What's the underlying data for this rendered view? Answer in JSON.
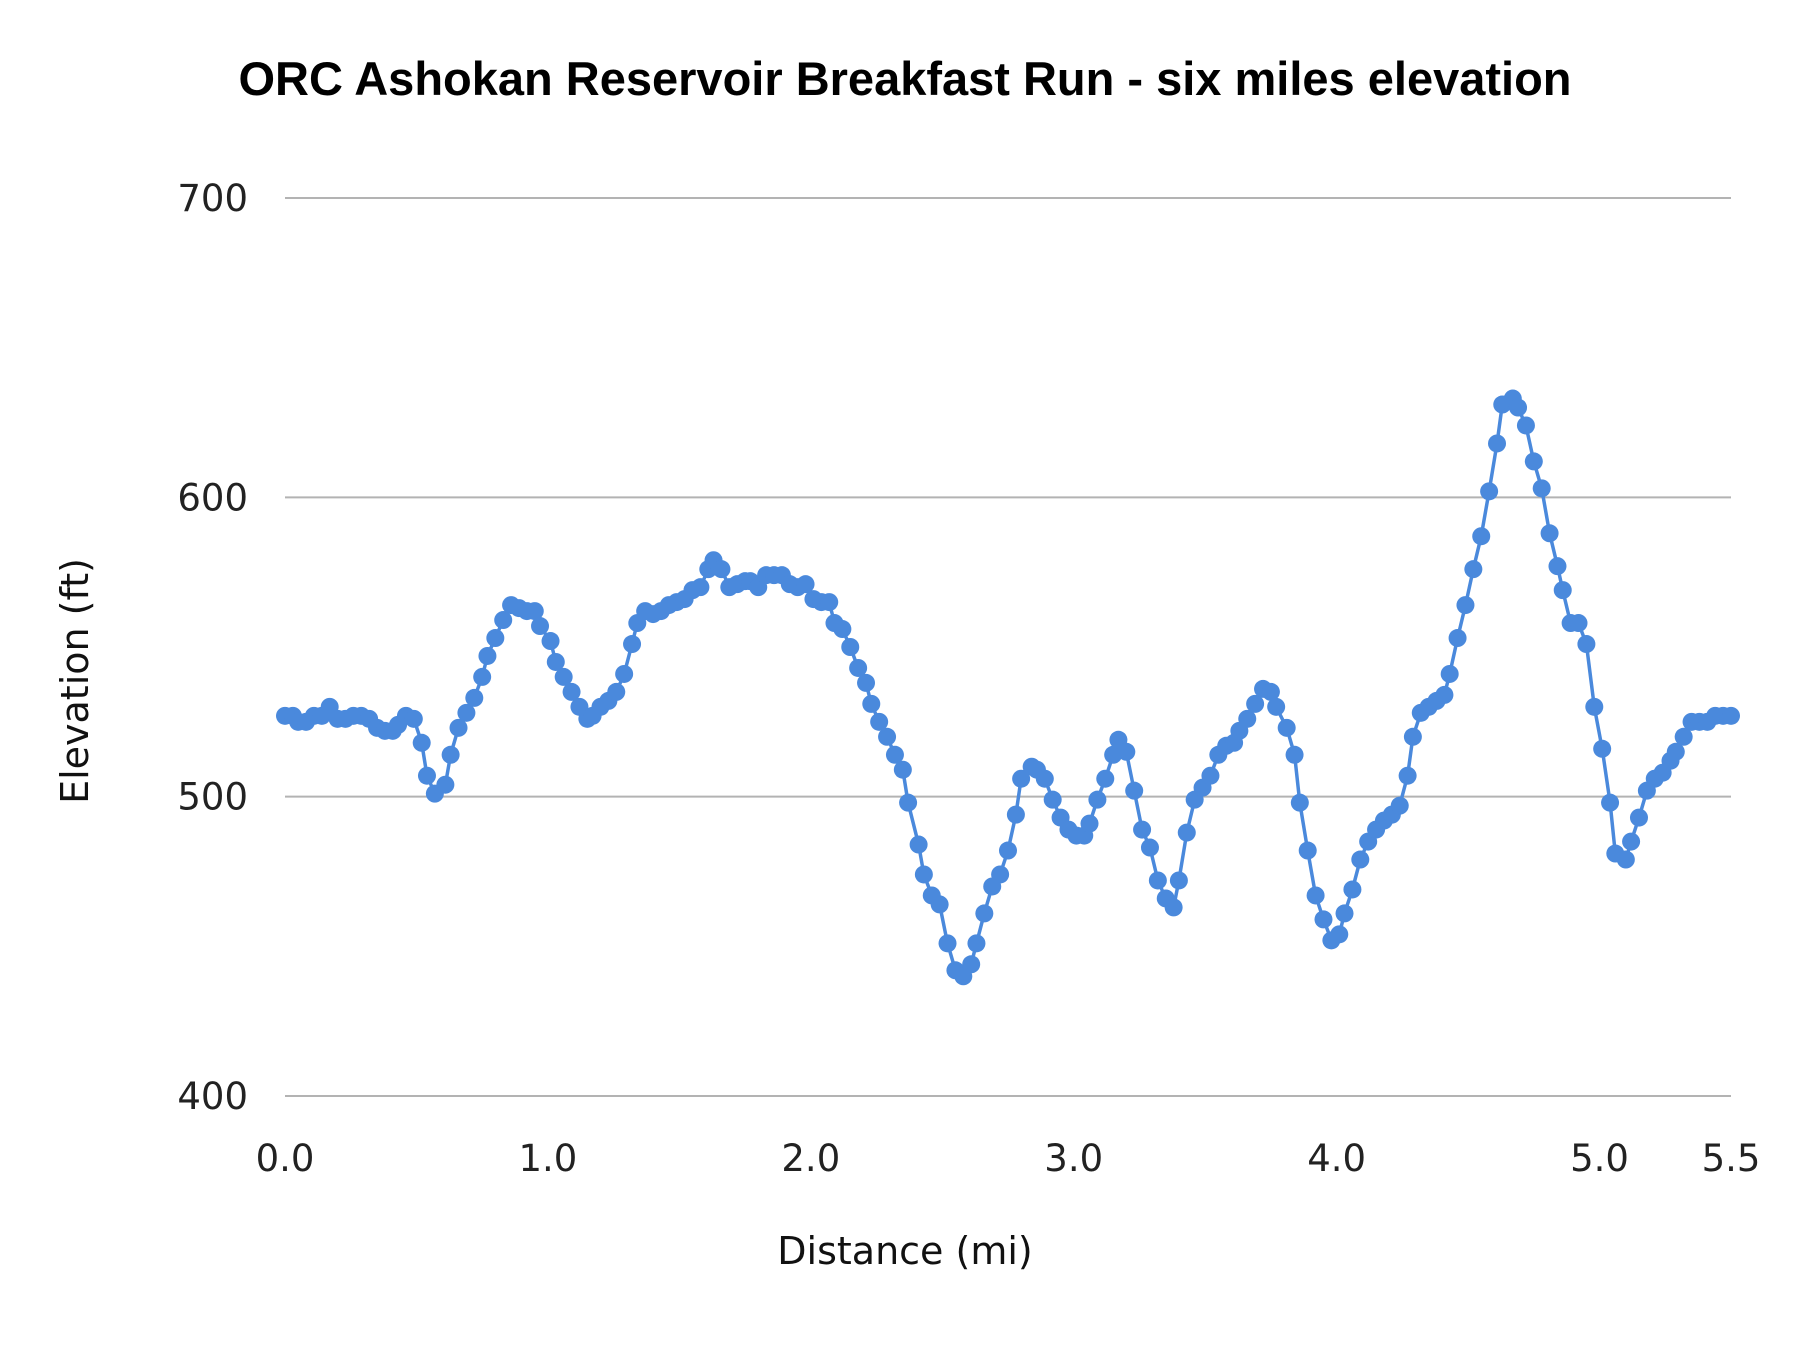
{
  "chart_data": {
    "type": "line",
    "title": "ORC Ashokan Reservoir Breakfast Run - six miles elevation",
    "xlabel": "Distance (mi)",
    "ylabel": "Elevation (ft)",
    "xlim": [
      0,
      5.5
    ],
    "ylim": [
      400,
      700
    ],
    "x_ticks": [
      "0.0",
      "1.0",
      "2.0",
      "3.0",
      "4.0",
      "5.0",
      "5.5"
    ],
    "y_ticks": [
      "400",
      "500",
      "600",
      "700"
    ],
    "grid": "horizontal",
    "legend": "none",
    "markers": true,
    "color": "#4a89dc",
    "series": [
      {
        "x": [
          0.0,
          0.03,
          0.05,
          0.08,
          0.11,
          0.14,
          0.17,
          0.2,
          0.23,
          0.26,
          0.29,
          0.32,
          0.35,
          0.38,
          0.41,
          0.43,
          0.46,
          0.49,
          0.52,
          0.54,
          0.57,
          0.61,
          0.63,
          0.66,
          0.69,
          0.72,
          0.75,
          0.77,
          0.8,
          0.83,
          0.86,
          0.89,
          0.92,
          0.95,
          0.97,
          1.01,
          1.03,
          1.06,
          1.09,
          1.12,
          1.15,
          1.17,
          1.2,
          1.23,
          1.26,
          1.29,
          1.32,
          1.34,
          1.37,
          1.4,
          1.43,
          1.46,
          1.49,
          1.52,
          1.55,
          1.58,
          1.61,
          1.63,
          1.66,
          1.69,
          1.72,
          1.75,
          1.77,
          1.8,
          1.83,
          1.86,
          1.89,
          1.92,
          1.95,
          1.98,
          2.01,
          2.04,
          2.07,
          2.09,
          2.12,
          2.15,
          2.18,
          2.21,
          2.23,
          2.26,
          2.29,
          2.32,
          2.35,
          2.37,
          2.41,
          2.43,
          2.46,
          2.49,
          2.52,
          2.55,
          2.58,
          2.61,
          2.63,
          2.66,
          2.69,
          2.72,
          2.75,
          2.78,
          2.8,
          2.84,
          2.86,
          2.89,
          2.92,
          2.95,
          2.98,
          3.01,
          3.04,
          3.06,
          3.09,
          3.12,
          3.15,
          3.17,
          3.2,
          3.23,
          3.26,
          3.29,
          3.32,
          3.35,
          3.38,
          3.4,
          3.43,
          3.46,
          3.49,
          3.52,
          3.55,
          3.58,
          3.61,
          3.63,
          3.66,
          3.69,
          3.72,
          3.75,
          3.77,
          3.81,
          3.84,
          3.86,
          3.89,
          3.92,
          3.95,
          3.98,
          4.01,
          4.03,
          4.06,
          4.09,
          4.12,
          4.15,
          4.18,
          4.21,
          4.24,
          4.27,
          4.29,
          4.32,
          4.35,
          4.38,
          4.41,
          4.43,
          4.46,
          4.49,
          4.52,
          4.55,
          4.58,
          4.61,
          4.63,
          4.67,
          4.69,
          4.72,
          4.75,
          4.78,
          4.81,
          4.84,
          4.86,
          4.89,
          4.92,
          4.95,
          4.98,
          5.01,
          5.04,
          5.06,
          5.1,
          5.12,
          5.15,
          5.18,
          5.21,
          5.24,
          5.27,
          5.29,
          5.32,
          5.35,
          5.38,
          5.41,
          5.44,
          5.47,
          5.5
        ],
        "y": [
          527,
          527,
          525,
          525,
          527,
          527,
          530,
          526,
          526,
          527,
          527,
          526,
          523,
          522,
          522,
          524,
          527,
          526,
          518,
          507,
          501,
          504,
          514,
          523,
          528,
          533,
          540,
          547,
          553,
          559,
          564,
          563,
          562,
          562,
          557,
          552,
          545,
          540,
          535,
          530,
          526,
          527,
          530,
          532,
          535,
          541,
          551,
          558,
          562,
          561,
          562,
          564,
          565,
          566,
          569,
          570,
          576,
          579,
          576,
          570,
          571,
          572,
          572,
          570,
          574,
          574,
          574,
          571,
          570,
          571,
          566,
          565,
          565,
          558,
          556,
          550,
          543,
          538,
          531,
          525,
          520,
          514,
          509,
          498,
          484,
          474,
          467,
          464,
          451,
          442,
          440,
          444,
          451,
          461,
          470,
          474,
          482,
          494,
          506,
          510,
          509,
          506,
          499,
          493,
          489,
          487,
          487,
          491,
          499,
          506,
          514,
          519,
          515,
          502,
          489,
          483,
          472,
          466,
          463,
          472,
          488,
          499,
          503,
          507,
          514,
          517,
          518,
          522,
          526,
          531,
          536,
          535,
          530,
          523,
          514,
          498,
          482,
          467,
          459,
          452,
          454,
          461,
          469,
          479,
          485,
          489,
          492,
          494,
          497,
          507,
          520,
          528,
          530,
          532,
          534,
          541,
          553,
          564,
          576,
          587,
          602,
          618,
          631,
          633,
          630,
          624,
          612,
          603,
          588,
          577,
          569,
          558,
          558,
          551,
          530,
          516,
          498,
          481,
          479,
          485,
          493,
          502,
          506,
          508,
          512,
          515,
          520,
          525,
          525,
          525,
          527,
          527,
          527
        ]
      }
    ]
  }
}
